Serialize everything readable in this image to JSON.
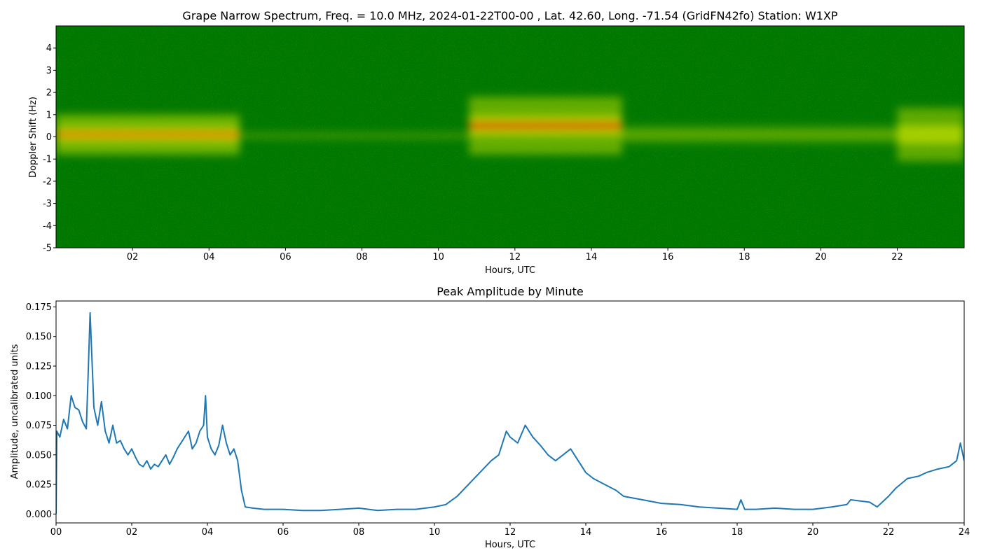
{
  "chart_data": [
    {
      "type": "heatmap",
      "title": "Grape Narrow Spectrum, Freq. = 10.0 MHz, 2024-01-22T00-00 , Lat.  42.60, Long. -71.54 (GridFN42fo) Station: W1XP",
      "xlabel": "Hours, UTC",
      "ylabel": "Doppler Shift (Hz)",
      "xlim": [
        0,
        23.75
      ],
      "ylim": [
        -5,
        5
      ],
      "xticks": [
        2,
        4,
        6,
        8,
        10,
        12,
        14,
        16,
        18,
        20,
        22
      ],
      "xtick_labels": [
        "02",
        "04",
        "06",
        "08",
        "10",
        "12",
        "14",
        "16",
        "18",
        "20",
        "22"
      ],
      "yticks": [
        -5,
        -4,
        -3,
        -2,
        -1,
        0,
        1,
        2,
        3,
        4
      ],
      "ytick_labels": [
        "-5",
        "-4",
        "-3",
        "-2",
        "-1",
        "0",
        "1",
        "2",
        "3",
        "4"
      ],
      "colormap": [
        "#007800",
        "#ffff00",
        "#ff0000"
      ],
      "features": [
        {
          "x": [
            0,
            4.8
          ],
          "doppler": 0.1,
          "spread": 0.9,
          "intensity": 0.95
        },
        {
          "x": [
            4.8,
            10.8
          ],
          "doppler": 0.05,
          "spread": 0.15,
          "intensity": 0.35
        },
        {
          "x": [
            10.8,
            14.8
          ],
          "doppler": 0.5,
          "spread": 1.3,
          "intensity": 0.85
        },
        {
          "x": [
            14.8,
            22.0
          ],
          "doppler": 0.1,
          "spread": 0.4,
          "intensity": 0.45
        },
        {
          "x": [
            22.0,
            23.75
          ],
          "doppler": 0.1,
          "spread": 1.2,
          "intensity": 0.8
        }
      ]
    },
    {
      "type": "line",
      "title": "Peak Amplitude by Minute",
      "xlabel": "Hours, UTC",
      "ylabel": "Amplitude, uncalibrated units",
      "xlim": [
        0,
        24
      ],
      "ylim": [
        -0.0075,
        0.18
      ],
      "xticks": [
        0,
        2,
        4,
        6,
        8,
        10,
        12,
        14,
        16,
        18,
        20,
        22,
        24
      ],
      "xtick_labels": [
        "00",
        "02",
        "04",
        "06",
        "08",
        "10",
        "12",
        "14",
        "16",
        "18",
        "20",
        "22",
        "24"
      ],
      "yticks": [
        0,
        0.025,
        0.05,
        0.075,
        0.1,
        0.125,
        0.15,
        0.175
      ],
      "ytick_labels": [
        "0.000",
        "0.025",
        "0.050",
        "0.075",
        "0.100",
        "0.125",
        "0.150",
        "0.175"
      ],
      "color": "#1f77b4",
      "series": [
        {
          "x": [
            0.0,
            0.02,
            0.1,
            0.2,
            0.3,
            0.4,
            0.5,
            0.6,
            0.7,
            0.8,
            0.85,
            0.9,
            0.95,
            1.0,
            1.1,
            1.2,
            1.3,
            1.4,
            1.5,
            1.6,
            1.7,
            1.8,
            1.9,
            2.0,
            2.1,
            2.2,
            2.3,
            2.4,
            2.5,
            2.6,
            2.7,
            2.8,
            2.9,
            3.0,
            3.1,
            3.2,
            3.3,
            3.4,
            3.5,
            3.6,
            3.7,
            3.8,
            3.9,
            3.95,
            4.0,
            4.1,
            4.2,
            4.3,
            4.4,
            4.5,
            4.6,
            4.7,
            4.8,
            4.9,
            5.0,
            5.2,
            5.5,
            6.0,
            6.5,
            7.0,
            7.5,
            8.0,
            8.5,
            9.0,
            9.5,
            10.0,
            10.3,
            10.6,
            10.9,
            11.2,
            11.5,
            11.7,
            11.9,
            12.0,
            12.2,
            12.4,
            12.6,
            12.8,
            13.0,
            13.2,
            13.4,
            13.6,
            13.8,
            14.0,
            14.2,
            14.5,
            14.8,
            15.0,
            15.5,
            16.0,
            16.5,
            17.0,
            17.5,
            18.0,
            18.1,
            18.2,
            18.5,
            19.0,
            19.5,
            20.0,
            20.5,
            20.9,
            21.0,
            21.5,
            21.7,
            22.0,
            22.2,
            22.5,
            22.8,
            23.0,
            23.3,
            23.6,
            23.8,
            23.9,
            24.0
          ],
          "values": [
            0.0,
            0.07,
            0.065,
            0.08,
            0.072,
            0.1,
            0.09,
            0.088,
            0.078,
            0.072,
            0.12,
            0.17,
            0.13,
            0.09,
            0.075,
            0.095,
            0.07,
            0.06,
            0.075,
            0.06,
            0.062,
            0.055,
            0.05,
            0.055,
            0.048,
            0.042,
            0.04,
            0.045,
            0.038,
            0.042,
            0.04,
            0.045,
            0.05,
            0.042,
            0.048,
            0.055,
            0.06,
            0.065,
            0.07,
            0.055,
            0.06,
            0.07,
            0.075,
            0.1,
            0.065,
            0.055,
            0.05,
            0.058,
            0.075,
            0.06,
            0.05,
            0.055,
            0.045,
            0.02,
            0.006,
            0.005,
            0.004,
            0.004,
            0.003,
            0.003,
            0.004,
            0.005,
            0.003,
            0.004,
            0.004,
            0.006,
            0.008,
            0.015,
            0.025,
            0.035,
            0.045,
            0.05,
            0.07,
            0.065,
            0.06,
            0.075,
            0.065,
            0.058,
            0.05,
            0.045,
            0.05,
            0.055,
            0.045,
            0.035,
            0.03,
            0.025,
            0.02,
            0.015,
            0.012,
            0.009,
            0.008,
            0.006,
            0.005,
            0.004,
            0.012,
            0.004,
            0.004,
            0.005,
            0.004,
            0.004,
            0.006,
            0.008,
            0.012,
            0.01,
            0.006,
            0.015,
            0.022,
            0.03,
            0.032,
            0.035,
            0.038,
            0.04,
            0.045,
            0.06,
            0.045
          ]
        }
      ]
    }
  ]
}
